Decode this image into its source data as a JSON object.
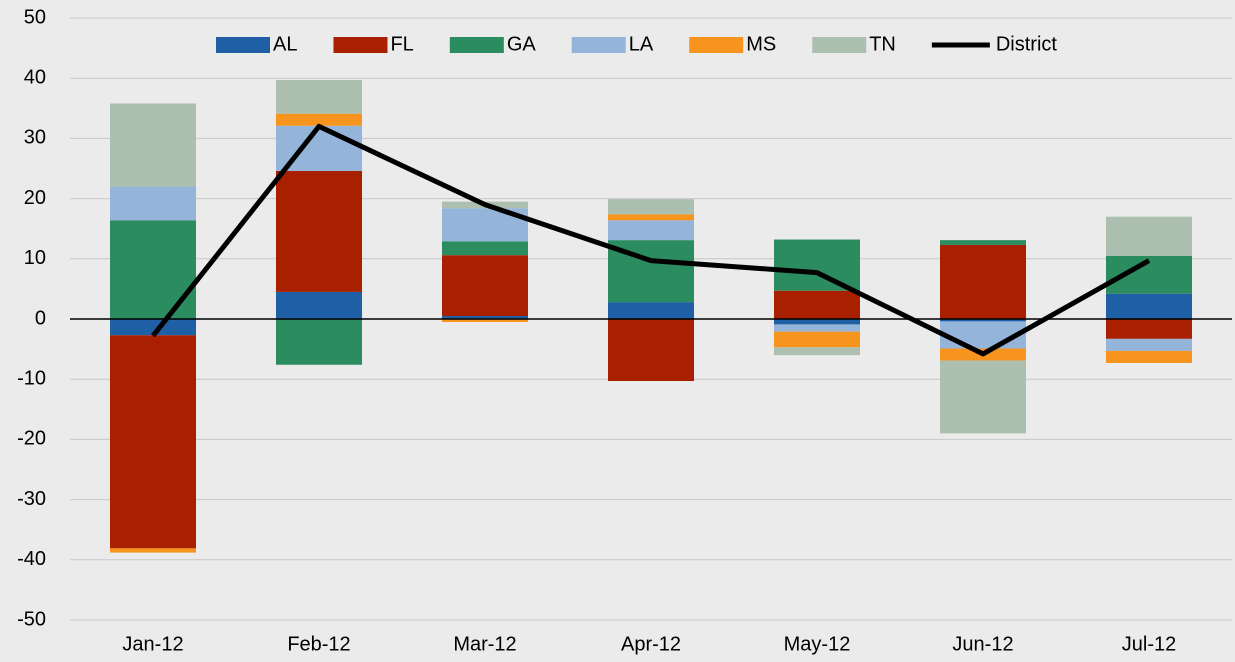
{
  "chart_data": {
    "type": "bar",
    "stacked": true,
    "categories": [
      "Jan-12",
      "Feb-12",
      "Mar-12",
      "Apr-12",
      "May-12",
      "Jun-12",
      "Jul-12"
    ],
    "series": [
      {
        "name": "AL",
        "color": "#1f5fa6",
        "values": [
          -2.7,
          4.5,
          0.5,
          2.8,
          -0.9,
          -0.4,
          4.2
        ]
      },
      {
        "name": "FL",
        "color": "#a82000",
        "values": [
          -35.4,
          20.1,
          10.1,
          -10.3,
          4.7,
          12.3,
          -3.3
        ]
      },
      {
        "name": "GA",
        "color": "#2a8c5f",
        "values": [
          16.4,
          -7.6,
          2.3,
          10.3,
          8.5,
          0.8,
          6.3
        ]
      },
      {
        "name": "LA",
        "color": "#94b4da",
        "values": [
          5.6,
          7.5,
          5.5,
          3.3,
          -1.2,
          -4.5,
          -2.0
        ]
      },
      {
        "name": "MS",
        "color": "#f7941d",
        "values": [
          -0.7,
          2.0,
          -0.5,
          1.0,
          -2.6,
          -2.0,
          -2.0
        ]
      },
      {
        "name": "TN",
        "color": "#adc0b0",
        "values": [
          13.8,
          5.6,
          1.1,
          2.5,
          -1.3,
          -12.1,
          6.5
        ]
      },
      {
        "name": "District",
        "color": "#000000",
        "type": "line",
        "values": [
          -2.8,
          32.0,
          19.0,
          9.7,
          7.7,
          -5.8,
          9.7
        ]
      }
    ],
    "ylim": [
      -50,
      50
    ],
    "yticks": [
      -50,
      -40,
      -30,
      -20,
      -10,
      0,
      10,
      20,
      30,
      40,
      50
    ],
    "grid": true,
    "legend": "top"
  }
}
